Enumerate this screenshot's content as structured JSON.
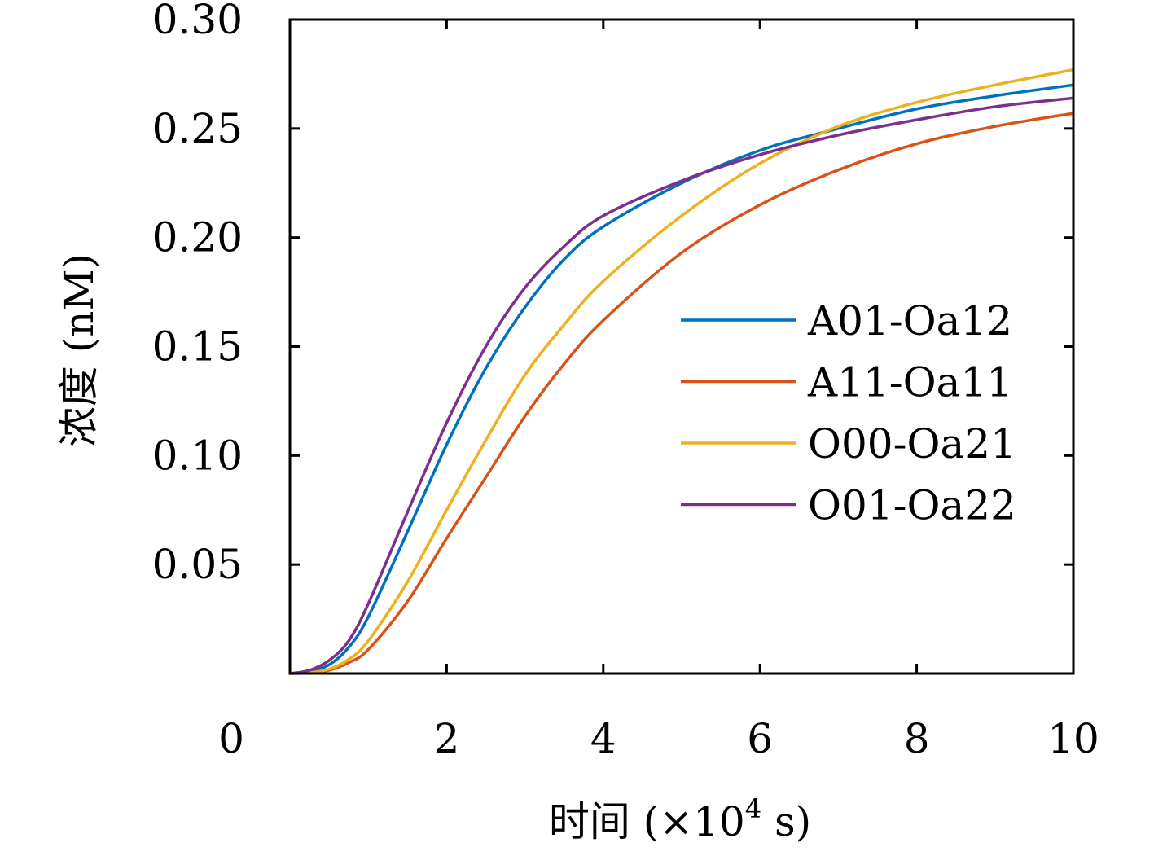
{
  "chart_data": {
    "type": "line",
    "xlabel": "时间 (×10",
    "xlabel_sup": "4",
    "xlabel_tail": " s)",
    "ylabel": "浓度 (nM)",
    "xlim": [
      0,
      10
    ],
    "ylim": [
      0,
      0.3
    ],
    "x_ticks": [
      "0",
      "2",
      "4",
      "6",
      "8",
      "10"
    ],
    "y_ticks": [
      "0.05",
      "0.10",
      "0.15",
      "0.20",
      "0.25",
      "0.30"
    ],
    "grid": false,
    "legend_position": "center-right",
    "x": [
      0,
      0.25,
      0.5,
      0.75,
      1,
      1.5,
      2,
      2.5,
      3,
      3.5,
      4,
      5,
      6,
      7,
      8,
      9,
      10
    ],
    "series": [
      {
        "name": "A01-Oa12",
        "color": "#0072BD",
        "values": [
          0,
          0.001,
          0.004,
          0.012,
          0.026,
          0.065,
          0.105,
          0.14,
          0.168,
          0.19,
          0.205,
          0.225,
          0.24,
          0.25,
          0.259,
          0.265,
          0.27
        ]
      },
      {
        "name": "A11-Oa11",
        "color": "#D95319",
        "values": [
          0,
          0.0003,
          0.0015,
          0.005,
          0.011,
          0.033,
          0.062,
          0.09,
          0.118,
          0.142,
          0.162,
          0.193,
          0.215,
          0.231,
          0.243,
          0.251,
          0.257
        ]
      },
      {
        "name": "O00-Oa21",
        "color": "#EDB120",
        "values": [
          0,
          0.0004,
          0.002,
          0.0065,
          0.015,
          0.042,
          0.075,
          0.107,
          0.137,
          0.16,
          0.18,
          0.21,
          0.234,
          0.251,
          0.262,
          0.27,
          0.277
        ]
      },
      {
        "name": "O01-Oa22",
        "color": "#7E2F8E",
        "values": [
          0,
          0.0015,
          0.006,
          0.015,
          0.032,
          0.074,
          0.115,
          0.15,
          0.177,
          0.196,
          0.21,
          0.226,
          0.238,
          0.247,
          0.254,
          0.26,
          0.264
        ]
      }
    ]
  }
}
